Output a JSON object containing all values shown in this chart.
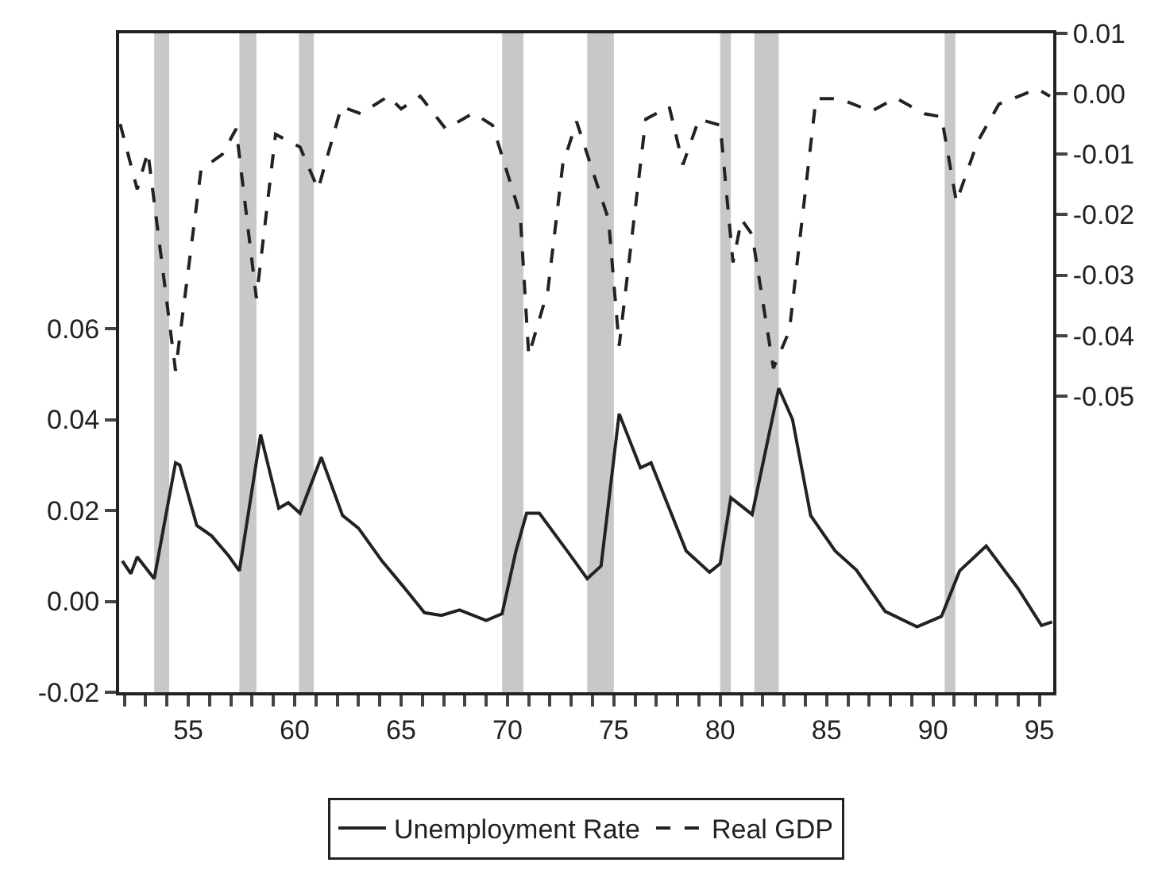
{
  "chart_data": {
    "type": "line",
    "legend": "bottom",
    "xlim": [
      51.75,
      95.65
    ],
    "xticks": [
      {
        "value": 52,
        "label": null
      },
      {
        "value": 53,
        "label": null
      },
      {
        "value": 54,
        "label": null
      },
      55,
      {
        "value": 56,
        "label": null
      },
      {
        "value": 57,
        "label": null
      },
      {
        "value": 58,
        "label": null
      },
      {
        "value": 59,
        "label": null
      },
      60,
      {
        "value": 61,
        "label": null
      },
      {
        "value": 62,
        "label": null
      },
      {
        "value": 63,
        "label": null
      },
      {
        "value": 64,
        "label": null
      },
      65,
      {
        "value": 66,
        "label": null
      },
      {
        "value": 67,
        "label": null
      },
      {
        "value": 68,
        "label": null
      },
      {
        "value": 69,
        "label": null
      },
      70,
      {
        "value": 71,
        "label": null
      },
      {
        "value": 72,
        "label": null
      },
      {
        "value": 73,
        "label": null
      },
      {
        "value": 74,
        "label": null
      },
      75,
      {
        "value": 76,
        "label": null
      },
      {
        "value": 77,
        "label": null
      },
      {
        "value": 78,
        "label": null
      },
      {
        "value": 79,
        "label": null
      },
      80,
      {
        "value": 81,
        "label": null
      },
      {
        "value": 82,
        "label": null
      },
      {
        "value": 83,
        "label": null
      },
      {
        "value": 84,
        "label": null
      },
      85,
      {
        "value": 86,
        "label": null
      },
      {
        "value": 87,
        "label": null
      },
      {
        "value": 88,
        "label": null
      },
      {
        "value": 89,
        "label": null
      },
      90,
      {
        "value": 91,
        "label": null
      },
      {
        "value": 92,
        "label": null
      },
      {
        "value": 93,
        "label": null
      },
      {
        "value": 94,
        "label": null
      },
      95
    ],
    "ylim": [
      -0.02,
      0.125
    ],
    "yticks": [
      {
        "value": -0.02,
        "label": "-0.02"
      },
      {
        "value": 0,
        "label": "0.00"
      },
      {
        "value": 0.02,
        "label": "0.02"
      },
      {
        "value": 0.04,
        "label": "0.04"
      },
      {
        "value": 0.06,
        "label": "0.06"
      }
    ],
    "y2lim": [
      -0.099,
      0.01
    ],
    "y2ticks": [
      {
        "value": 0.01,
        "label": "0.01"
      },
      {
        "value": 0,
        "label": "0.00"
      },
      {
        "value": -0.01,
        "label": "-0.01"
      },
      {
        "value": -0.02,
        "label": "-0.02"
      },
      {
        "value": -0.03,
        "label": "-0.03"
      },
      {
        "value": -0.04,
        "label": "-0.04"
      },
      {
        "value": -0.05,
        "label": "-0.05"
      }
    ],
    "bands": [
      {
        "axis": "x",
        "from": 53.4,
        "to": 54.1,
        "color": "#c8c8c8"
      },
      {
        "axis": "x",
        "from": 57.4,
        "to": 58.2,
        "color": "#c8c8c8"
      },
      {
        "axis": "x",
        "from": 60.2,
        "to": 60.9,
        "color": "#c8c8c8"
      },
      {
        "axis": "x",
        "from": 69.75,
        "to": 70.75,
        "color": "#c8c8c8"
      },
      {
        "axis": "x",
        "from": 73.75,
        "to": 75.0,
        "color": "#c8c8c8"
      },
      {
        "axis": "x",
        "from": 80.0,
        "to": 80.5,
        "color": "#c8c8c8"
      },
      {
        "axis": "x",
        "from": 81.6,
        "to": 82.75,
        "color": "#c8c8c8"
      },
      {
        "axis": "x",
        "from": 90.55,
        "to": 91.05,
        "color": "#c8c8c8"
      }
    ],
    "series": [
      {
        "name": "Unemployment Rate",
        "color": "#222222",
        "line_style": "solid",
        "x": [
          51.9,
          52.3,
          52.6,
          53.4,
          54.4,
          54.6,
          55.4,
          56.1,
          56.9,
          57.4,
          58.4,
          59.25,
          59.7,
          60.25,
          61.25,
          62.25,
          63.0,
          64.1,
          65.1,
          66.1,
          66.9,
          67.75,
          69.0,
          69.75,
          70.4,
          70.9,
          71.5,
          72.9,
          73.75,
          74.4,
          75.25,
          76.25,
          76.75,
          78.4,
          79.5,
          80.0,
          80.5,
          81.5,
          82.75,
          83.4,
          84.25,
          85.4,
          86.4,
          87.75,
          89.25,
          90.4,
          91.25,
          92.5,
          94.0,
          95.1,
          95.6
        ],
        "values": [
          0.0089,
          0.0061,
          0.0098,
          0.005,
          0.0305,
          0.03,
          0.0167,
          0.0144,
          0.01,
          0.0067,
          0.0367,
          0.0205,
          0.0217,
          0.0194,
          0.0317,
          0.0189,
          0.0161,
          0.0089,
          0.0033,
          -0.0025,
          -0.0031,
          -0.0019,
          -0.0042,
          -0.0027,
          0.0111,
          0.0194,
          0.0194,
          0.0105,
          0.005,
          0.0078,
          0.0413,
          0.0294,
          0.0305,
          0.0111,
          0.0064,
          0.0083,
          0.0228,
          0.0191,
          0.0469,
          0.04,
          0.0189,
          0.0111,
          0.0069,
          -0.0022,
          -0.0056,
          -0.0033,
          0.0067,
          0.0122,
          0.0028,
          -0.0053,
          -0.0045
        ]
      },
      {
        "name": "Real GDP",
        "color": "#222222",
        "line_style": "dashed",
        "axis": "y2",
        "x": [
          51.8,
          52.6,
          53.1,
          54.4,
          55.6,
          56.6,
          57.25,
          58.2,
          59.1,
          60.25,
          61.1,
          62.2,
          63.1,
          64.4,
          65.0,
          65.9,
          67.1,
          68.4,
          69.3,
          70.6,
          71.0,
          71.9,
          72.6,
          73.25,
          74.1,
          74.75,
          75.25,
          76.5,
          77.6,
          78.25,
          79.0,
          80.0,
          80.6,
          81.0,
          81.5,
          82.5,
          83.25,
          84.5,
          85.6,
          87.1,
          88.25,
          89.6,
          90.4,
          91.1,
          92.1,
          93.1,
          94.9,
          95.5
        ],
        "values": [
          -0.005,
          -0.0158,
          -0.0096,
          -0.0458,
          -0.0125,
          -0.01,
          -0.0058,
          -0.0338,
          -0.0067,
          -0.0088,
          -0.0158,
          -0.0021,
          -0.0033,
          -0.0004,
          -0.0025,
          -0.0004,
          -0.0058,
          -0.0032,
          -0.0052,
          -0.02,
          -0.0433,
          -0.0325,
          -0.0117,
          -0.0046,
          -0.0138,
          -0.0208,
          -0.0417,
          -0.0042,
          -0.0021,
          -0.0117,
          -0.0042,
          -0.0052,
          -0.0279,
          -0.0208,
          -0.0233,
          -0.0454,
          -0.0392,
          -0.0008,
          -0.0008,
          -0.0029,
          -0.0007,
          -0.0033,
          -0.0038,
          -0.0179,
          -0.0079,
          -0.0017,
          0.0008,
          -0.0004
        ]
      }
    ]
  }
}
